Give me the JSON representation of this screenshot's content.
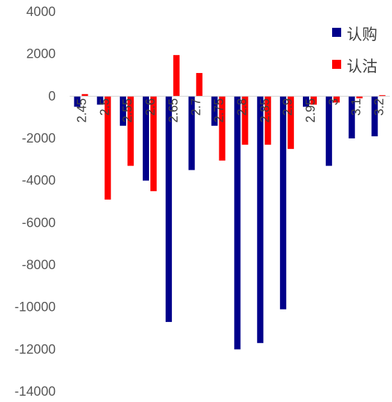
{
  "chart_data": {
    "type": "bar",
    "categories": [
      "2.45",
      "2.5",
      "2.55",
      "2.6",
      "2.65",
      "2.7",
      "2.75",
      "2.8",
      "2.85",
      "2.9",
      "2.95",
      "3",
      "3.1",
      "3.2"
    ],
    "series": [
      {
        "name": "认购",
        "color": "#00008B",
        "values": [
          -500,
          -400,
          -1400,
          -4000,
          -10700,
          -3500,
          -1400,
          -12000,
          -11700,
          -10100,
          -500,
          -3300,
          -2000,
          -1900
        ]
      },
      {
        "name": "认沽",
        "color": "#FF0000",
        "values": [
          100,
          -4900,
          -3300,
          -4500,
          1950,
          1100,
          -3050,
          -2300,
          -2300,
          -2500,
          -400,
          -300,
          -100,
          50
        ]
      }
    ],
    "ylim": [
      -14000,
      4000
    ],
    "yticks": [
      4000,
      2000,
      0,
      -2000,
      -4000,
      -6000,
      -8000,
      -10000,
      -12000,
      -14000
    ],
    "legend_position": "top-right",
    "grid": false
  }
}
